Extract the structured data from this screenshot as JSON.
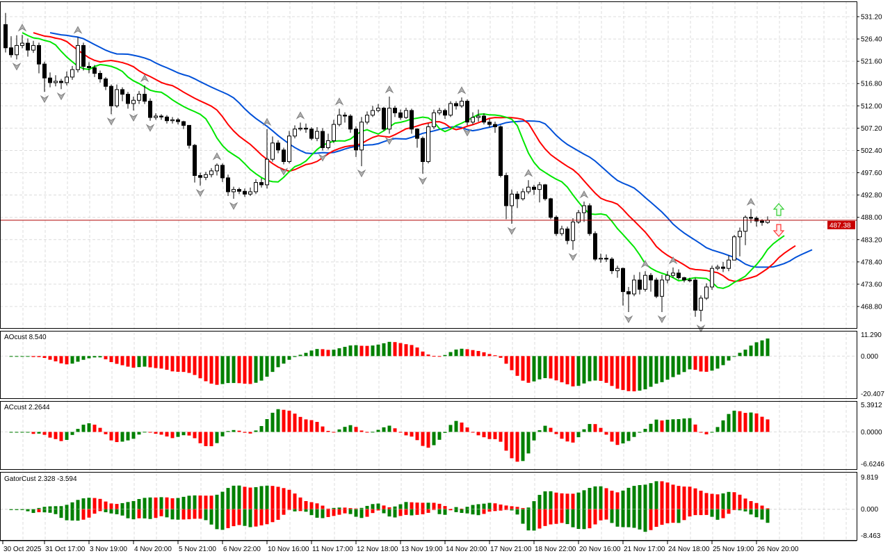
{
  "chart_data": {
    "type": "candlestick",
    "symbol_price_current": 487.38,
    "current_price_label": "487.38",
    "price_axis_ticks": [
      531.2,
      526.4,
      521.6,
      516.8,
      512.0,
      507.2,
      502.4,
      497.6,
      492.8,
      488.0,
      483.2,
      478.4,
      473.6,
      468.8
    ],
    "time_labels": [
      "30 Oct 2025",
      "31 Oct 17:00",
      "3 Nov 19:00",
      "4 Nov 20:00",
      "5 Nov 21:00",
      "6 Nov 22:00",
      "10 Nov 16:00",
      "11 Nov 17:00",
      "12 Nov 18:00",
      "13 Nov 19:00",
      "14 Nov 20:00",
      "17 Nov 21:00",
      "18 Nov 22:00",
      "20 Nov 16:00",
      "21 Nov 17:00",
      "24 Nov 18:00",
      "25 Nov 19:00",
      "26 Nov 20:00"
    ],
    "ohlc_columns": [
      "open",
      "high",
      "low",
      "close"
    ],
    "ohlc": [
      [
        529.5,
        532.0,
        523.5,
        524.5
      ],
      [
        524.5,
        527.0,
        522.4,
        523.0
      ],
      [
        523.0,
        527.2,
        522.0,
        525.0
      ],
      [
        525.0,
        527.3,
        524.4,
        525.5
      ],
      [
        525.5,
        526.5,
        522.6,
        524.0
      ],
      [
        524.0,
        526.0,
        523.4,
        525.0
      ],
      [
        525.0,
        525.6,
        519.0,
        521.0
      ],
      [
        521.0,
        521.5,
        515.0,
        518.0
      ],
      [
        518.0,
        519.2,
        516.0,
        517.0
      ],
      [
        517.0,
        518.6,
        516.2,
        517.3
      ],
      [
        517.3,
        517.8,
        515.6,
        517.0
      ],
      [
        517.0,
        519.4,
        516.4,
        518.2
      ],
      [
        518.2,
        520.6,
        517.6,
        519.8
      ],
      [
        519.8,
        526.8,
        519.2,
        525.0
      ],
      [
        525.0,
        525.6,
        519.6,
        520.5
      ],
      [
        520.5,
        521.4,
        519.0,
        520.2
      ],
      [
        520.2,
        520.8,
        518.2,
        519.0
      ],
      [
        519.0,
        519.6,
        517.0,
        517.8
      ],
      [
        517.8,
        518.2,
        515.4,
        516.2
      ],
      [
        516.2,
        516.6,
        510.2,
        512.0
      ],
      [
        512.0,
        516.6,
        511.6,
        515.5
      ],
      [
        515.5,
        516.0,
        513.0,
        514.5
      ],
      [
        514.5,
        515.0,
        511.4,
        512.5
      ],
      [
        512.5,
        514.0,
        511.0,
        513.2
      ],
      [
        513.2,
        515.2,
        512.4,
        514.5
      ],
      [
        514.5,
        516.4,
        512.4,
        513.0
      ],
      [
        513.0,
        513.6,
        508.8,
        509.5
      ],
      [
        509.5,
        510.4,
        509.0,
        509.8
      ],
      [
        509.8,
        510.2,
        509.0,
        509.6
      ],
      [
        509.6,
        510.0,
        508.2,
        508.8
      ],
      [
        508.8,
        509.6,
        508.2,
        509.0
      ],
      [
        509.0,
        509.4,
        508.0,
        508.6
      ],
      [
        508.6,
        508.8,
        507.0,
        507.8
      ],
      [
        507.8,
        507.8,
        502.8,
        503.5
      ],
      [
        503.5,
        503.8,
        495.5,
        497.0
      ],
      [
        497.0,
        497.6,
        494.8,
        496.6
      ],
      [
        496.6,
        497.8,
        496.0,
        497.2
      ],
      [
        497.2,
        498.6,
        496.6,
        498.0
      ],
      [
        498.0,
        499.6,
        497.0,
        499.2
      ],
      [
        499.2,
        499.6,
        495.6,
        496.5
      ],
      [
        496.5,
        497.2,
        492.6,
        493.5
      ],
      [
        493.5,
        494.6,
        492.0,
        494.0
      ],
      [
        494.0,
        494.4,
        493.0,
        493.6
      ],
      [
        493.6,
        494.2,
        492.4,
        493.0
      ],
      [
        493.0,
        494.4,
        492.6,
        493.5
      ],
      [
        493.5,
        496.2,
        493.0,
        495.5
      ],
      [
        495.5,
        496.4,
        494.4,
        495.0
      ],
      [
        495.0,
        507.0,
        494.2,
        500.5
      ],
      [
        500.5,
        505.4,
        500.0,
        504.0
      ],
      [
        504.0,
        504.6,
        501.8,
        502.5
      ],
      [
        502.5,
        503.0,
        499.4,
        500.0
      ],
      [
        500.0,
        506.6,
        499.6,
        505.5
      ],
      [
        505.5,
        507.8,
        505.0,
        507.0
      ],
      [
        507.0,
        508.4,
        506.6,
        507.2
      ],
      [
        507.2,
        508.2,
        506.2,
        507.0
      ],
      [
        507.0,
        507.4,
        504.6,
        505.0
      ],
      [
        505.0,
        507.4,
        504.4,
        506.5
      ],
      [
        506.5,
        507.2,
        502.4,
        503.0
      ],
      [
        503.0,
        506.0,
        502.6,
        504.5
      ],
      [
        504.5,
        509.0,
        504.0,
        508.0
      ],
      [
        508.0,
        511.4,
        507.6,
        510.0
      ],
      [
        510.0,
        510.6,
        508.4,
        509.8
      ],
      [
        509.8,
        510.2,
        506.2,
        507.0
      ],
      [
        507.0,
        507.6,
        501.0,
        502.5
      ],
      [
        502.5,
        509.6,
        499.0,
        508.5
      ],
      [
        508.5,
        510.8,
        508.0,
        510.0
      ],
      [
        510.0,
        512.0,
        509.6,
        511.0
      ],
      [
        511.0,
        512.4,
        510.6,
        511.5
      ],
      [
        511.5,
        511.8,
        506.6,
        507.0
      ],
      [
        507.0,
        514.0,
        506.0,
        511.5
      ],
      [
        511.5,
        512.0,
        509.6,
        510.5
      ],
      [
        510.5,
        511.2,
        509.0,
        509.5
      ],
      [
        509.5,
        511.6,
        509.2,
        511.0
      ],
      [
        511.0,
        511.4,
        506.0,
        507.0
      ],
      [
        507.0,
        507.2,
        503.0,
        505.0
      ],
      [
        505.0,
        505.4,
        497.4,
        500.0
      ],
      [
        500.0,
        508.2,
        499.6,
        507.5
      ],
      [
        507.5,
        511.2,
        507.0,
        510.5
      ],
      [
        510.5,
        511.6,
        510.0,
        511.0
      ],
      [
        511.0,
        511.4,
        509.2,
        510.0
      ],
      [
        510.0,
        513.0,
        509.6,
        512.5
      ],
      [
        512.5,
        513.0,
        511.2,
        512.0
      ],
      [
        512.0,
        513.8,
        511.6,
        513.0
      ],
      [
        513.0,
        513.4,
        507.8,
        508.5
      ],
      [
        508.5,
        510.6,
        508.0,
        509.5
      ],
      [
        509.5,
        511.2,
        508.6,
        509.8
      ],
      [
        509.8,
        510.4,
        508.0,
        508.5
      ],
      [
        508.5,
        509.2,
        507.4,
        508.0
      ],
      [
        508.0,
        508.6,
        506.2,
        507.5
      ],
      [
        507.5,
        507.8,
        496.6,
        497.0
      ],
      [
        497.0,
        497.6,
        487.6,
        490.5
      ],
      [
        490.5,
        494.0,
        486.6,
        493.0
      ],
      [
        493.0,
        493.6,
        490.0,
        492.0
      ],
      [
        492.0,
        494.2,
        491.6,
        493.5
      ],
      [
        493.5,
        496.0,
        493.0,
        494.5
      ],
      [
        494.5,
        495.0,
        492.8,
        494.0
      ],
      [
        494.0,
        495.6,
        491.2,
        495.0
      ],
      [
        495.0,
        495.2,
        491.6,
        492.0
      ],
      [
        492.0,
        492.2,
        487.6,
        488.0
      ],
      [
        488.0,
        488.4,
        484.0,
        484.5
      ],
      [
        484.5,
        486.2,
        484.0,
        485.5
      ],
      [
        485.5,
        486.0,
        482.2,
        483.0
      ],
      [
        483.0,
        487.8,
        481.0,
        487.0
      ],
      [
        487.0,
        489.6,
        486.6,
        489.0
      ],
      [
        489.0,
        491.4,
        487.0,
        490.5
      ],
      [
        490.5,
        491.0,
        484.0,
        484.5
      ],
      [
        484.5,
        485.0,
        478.6,
        479.0
      ],
      [
        479.0,
        480.2,
        478.2,
        479.2
      ],
      [
        479.2,
        480.0,
        478.4,
        479.0
      ],
      [
        479.0,
        479.4,
        475.8,
        476.5
      ],
      [
        476.5,
        477.6,
        475.0,
        477.0
      ],
      [
        477.0,
        477.2,
        469.0,
        472.0
      ],
      [
        472.0,
        473.0,
        467.6,
        471.5
      ],
      [
        471.5,
        475.6,
        471.0,
        474.5
      ],
      [
        474.5,
        476.2,
        471.4,
        472.5
      ],
      [
        472.5,
        476.4,
        472.0,
        475.5
      ],
      [
        475.5,
        476.0,
        472.0,
        474.5
      ],
      [
        474.5,
        475.0,
        470.6,
        471.0
      ],
      [
        471.0,
        475.6,
        467.6,
        474.5
      ],
      [
        474.5,
        476.4,
        473.8,
        475.5
      ],
      [
        475.5,
        477.2,
        475.0,
        476.0
      ],
      [
        476.0,
        476.8,
        474.6,
        475.0
      ],
      [
        475.0,
        475.2,
        474.0,
        474.5
      ],
      [
        474.5,
        475.0,
        474.0,
        474.5
      ],
      [
        474.5,
        475.0,
        466.6,
        468.0
      ],
      [
        468.0,
        471.2,
        465.6,
        470.6
      ],
      [
        470.6,
        473.8,
        470.2,
        473.0
      ],
      [
        473.0,
        477.6,
        472.4,
        477.0
      ],
      [
        477.0,
        477.8,
        476.6,
        477.3
      ],
      [
        477.3,
        478.4,
        476.2,
        477.0
      ],
      [
        477.0,
        479.8,
        476.4,
        478.8
      ],
      [
        478.8,
        484.2,
        479.0,
        483.8
      ],
      [
        483.8,
        485.8,
        479.6,
        485.0
      ],
      [
        485.0,
        488.4,
        482.0,
        488.0
      ],
      [
        488.0,
        489.8,
        486.8,
        487.8
      ],
      [
        487.8,
        488.2,
        486.0,
        487.2
      ],
      [
        487.2,
        487.6,
        486.2,
        486.9
      ],
      [
        486.9,
        488.2,
        486.6,
        487.38
      ]
    ],
    "alligator": {
      "jaw_color": "#0050d8",
      "teeth_color": "#ff0000",
      "lips_color": "#00e600"
    },
    "bull_color": "#ffffff",
    "bear_color": "#000000",
    "signal_arrows": [
      {
        "type": "buy",
        "icon": "arrow-up-outline-icon",
        "color": "#33cc33"
      },
      {
        "type": "sell",
        "icon": "arrow-down-outline-icon",
        "color": "#ff3333"
      }
    ],
    "indicators": [
      {
        "name": "AOcust",
        "label": "AOcust 8.540",
        "max": 11.29,
        "max_label": "11.290",
        "zero_label": "0.000",
        "min": -20.407,
        "min_label": "-20.407"
      },
      {
        "name": "ACcust",
        "label": "ACcust 2.2644",
        "max": 5.3912,
        "max_label": "5.3912",
        "zero_label": "0.0000",
        "min": -6.6246,
        "min_label": "-6.6246"
      },
      {
        "name": "GatorCust",
        "label": "GatorCust 2.328 -3.594",
        "max": 9.819,
        "max_label": "9.819",
        "zero_label": "0.000",
        "min": -8.463,
        "min_label": "-8.463"
      }
    ],
    "up_color": "#008000",
    "down_color": "#ff0000",
    "grid": true
  }
}
